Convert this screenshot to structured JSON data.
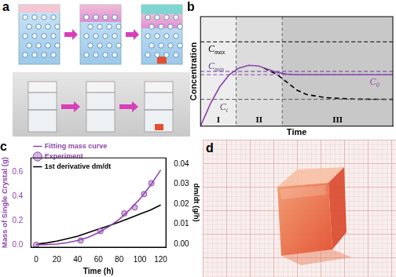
{
  "chart_data": [
    {
      "type": "line",
      "title": "b",
      "x_label": "Time",
      "y_label": "Concentration",
      "xlim": [
        0,
        1
      ],
      "ylim": [
        0,
        1
      ],
      "tick_labels": false,
      "series": [
        {
          "color": "#8e44ad",
          "line_style": "solid",
          "x": [
            0,
            0.05,
            0.1,
            0.15,
            0.2,
            0.25,
            0.3,
            0.35,
            0.4,
            0.45,
            0.5,
            0.6,
            0.8,
            1
          ],
          "values": [
            0,
            0.2,
            0.36,
            0.47,
            0.53,
            0.555,
            0.55,
            0.52,
            0.49,
            0.475,
            0.47,
            0.47,
            0.47,
            0.47
          ]
        },
        {
          "color": "#000000",
          "line_style": "dashed",
          "x": [
            0.33,
            0.4,
            0.45,
            0.5,
            0.55,
            0.65,
            0.8,
            1
          ],
          "values": [
            0.53,
            0.47,
            0.4,
            0.33,
            0.29,
            0.26,
            0.247,
            0.245
          ]
        }
      ],
      "annotations": [
        {
          "text": "C",
          "subscript": "max",
          "x": 0.04,
          "y": 0.77,
          "color": "#000000",
          "line_style": "dashed"
        },
        {
          "text": "C",
          "subscript": "min",
          "x": 0.04,
          "y": 0.5,
          "color": "#5b3f8c",
          "line_style": "dashed"
        },
        {
          "text": "C",
          "subscript": "0",
          "x": 0.88,
          "y": 0.47,
          "color": "#8e44ad",
          "line_style": "dashed"
        },
        {
          "text": "C",
          "subscript": "t",
          "x": 0.1,
          "y": 0.245,
          "color": "#555555",
          "line_style": "dashed"
        }
      ],
      "regions": [
        {
          "label": "I",
          "x": [
            0,
            0.185
          ]
        },
        {
          "label": "II",
          "x": [
            0.185,
            0.425
          ]
        },
        {
          "label": "III",
          "x": [
            0.425,
            1
          ]
        }
      ]
    },
    {
      "type": "line",
      "title": "c",
      "x_label": "Time (h)",
      "y_label": "Mass of Single Crystal (g)",
      "y2_label": "dm/dt (g/h)",
      "xlim": [
        -5,
        125
      ],
      "xticks": [
        0,
        20,
        40,
        60,
        80,
        100,
        120
      ],
      "ylim": [
        -0.02,
        0.72
      ],
      "yticks": [
        {
          "value": 0,
          "label": "0.0"
        },
        0.2,
        0.4,
        0.6
      ],
      "y2lim": [
        -0.0015,
        0.043
      ],
      "y2ticks": [
        {
          "value": 0,
          "label": "0.00"
        },
        0.01,
        0.02,
        0.03,
        0.04
      ],
      "legend": "upper left",
      "series": [
        {
          "name": "Fitting mass curve",
          "color": "#8e44ad",
          "line_style": "solid",
          "x": [
            0,
            10,
            20,
            30,
            40,
            50,
            60,
            70,
            80,
            90,
            100,
            110,
            120
          ],
          "values": [
            0,
            0.001,
            0.006,
            0.017,
            0.035,
            0.062,
            0.1,
            0.15,
            0.21,
            0.29,
            0.38,
            0.49,
            0.62
          ]
        },
        {
          "name": "Experiment",
          "type": "scatter",
          "marker": "circle",
          "color": "#8e44ad",
          "x": [
            0,
            43,
            62,
            85,
            95,
            104,
            111
          ],
          "values": [
            0,
            0.036,
            0.114,
            0.26,
            0.31,
            0.42,
            0.51
          ]
        },
        {
          "name": "1st derivative dm/dt",
          "axis": "y2",
          "color": "#000000",
          "line_style": "solid",
          "x": [
            0,
            10,
            20,
            30,
            40,
            50,
            60,
            70,
            80,
            90,
            100,
            110,
            120
          ],
          "values": [
            0,
            0.0006,
            0.0015,
            0.0027,
            0.004,
            0.0057,
            0.0075,
            0.0092,
            0.011,
            0.013,
            0.015,
            0.017,
            0.0195
          ]
        }
      ]
    }
  ],
  "illustrations": [
    {
      "title": "a"
    },
    {
      "title": "d"
    }
  ]
}
